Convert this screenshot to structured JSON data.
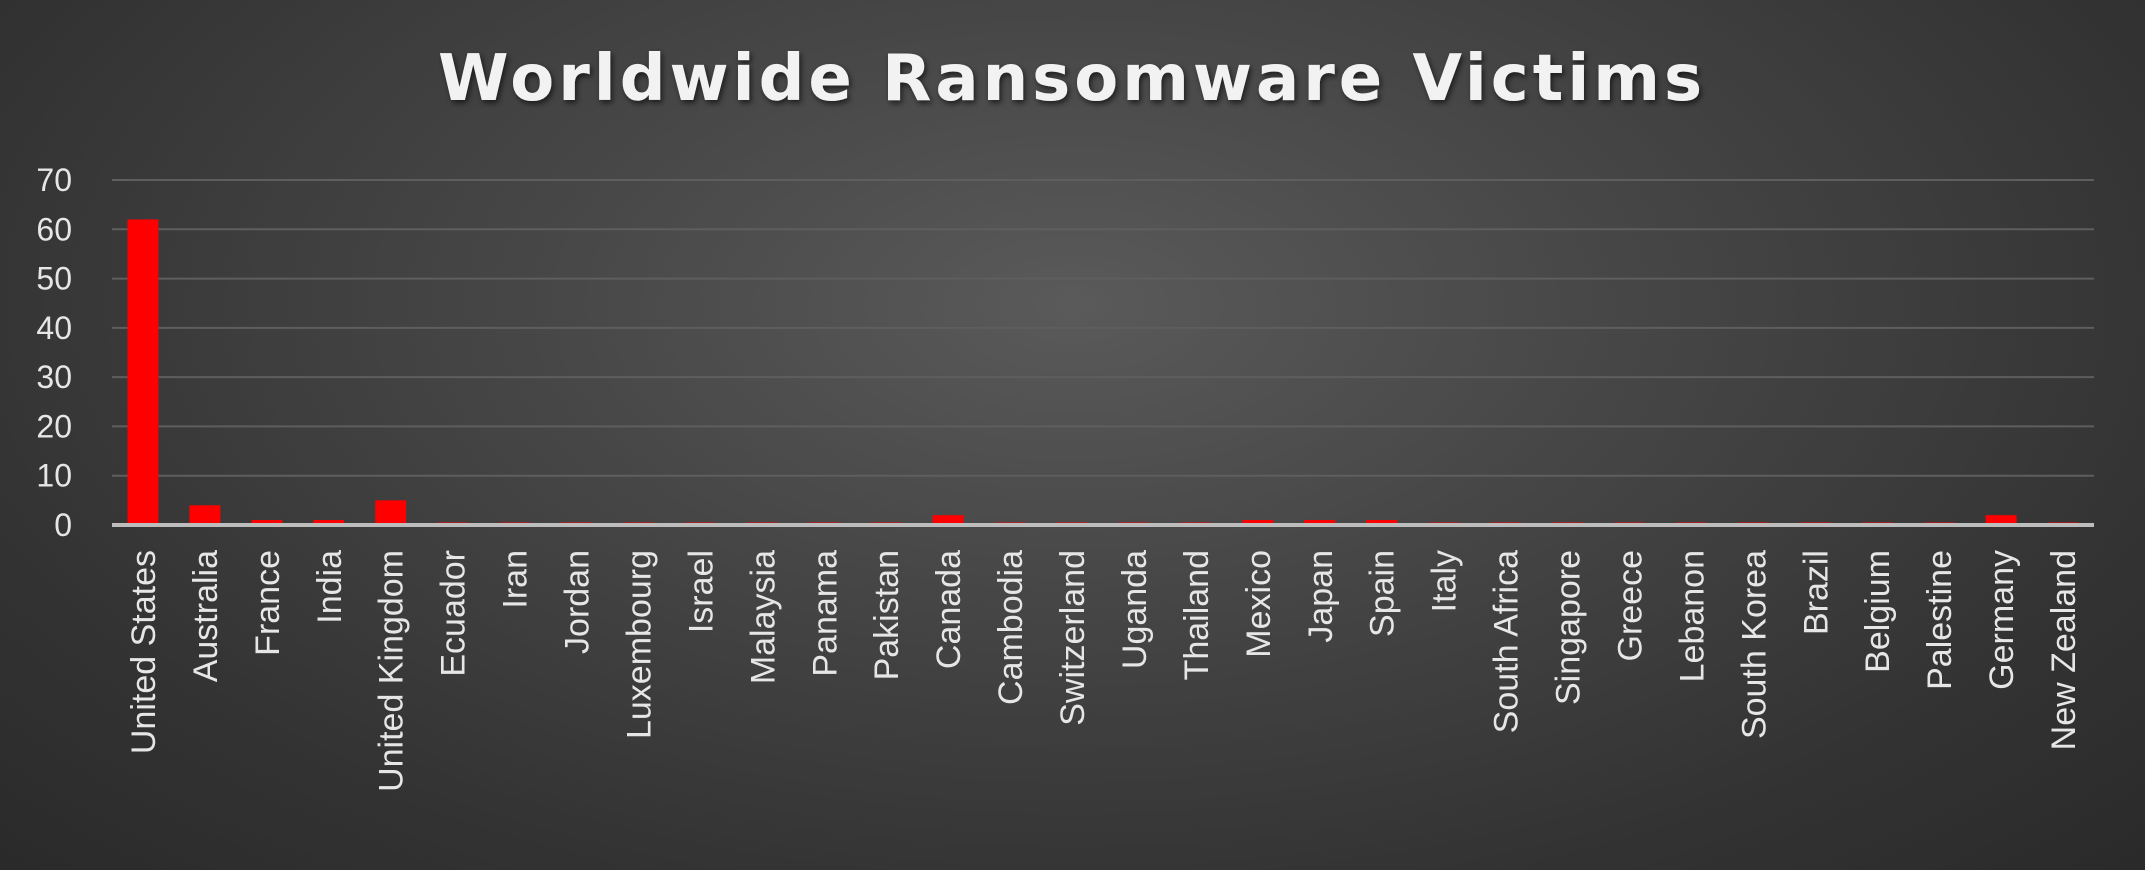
{
  "chart_data": {
    "type": "bar",
    "title": "Worldwide Ransomware Victims",
    "xlabel": "",
    "ylabel": "",
    "ylim": [
      0,
      70
    ],
    "yticks": [
      0,
      10,
      20,
      30,
      40,
      50,
      60,
      70
    ],
    "grid": true,
    "legend": "none",
    "categories": [
      "United States",
      "Australia",
      "France",
      "India",
      "United Kingdom",
      "Ecuador",
      "Iran",
      "Jordan",
      "Luxembourg",
      "Israel",
      "Malaysia",
      "Panama",
      "Pakistan",
      "Canada",
      "Cambodia",
      "Switzerland",
      "Uganda",
      "Thailand",
      "Mexico",
      "Japan",
      "Spain",
      "Italy",
      "South Africa",
      "Singapore",
      "Greece",
      "Lebanon",
      "South Korea",
      "Brazil",
      "Belgium",
      "Palestine",
      "Germany",
      "New Zealand"
    ],
    "values": [
      62,
      4,
      1,
      1,
      5,
      0.5,
      0.5,
      0.5,
      0.5,
      0.5,
      0.5,
      0.5,
      0.5,
      2,
      0.5,
      0.5,
      0.5,
      0.5,
      1,
      1,
      1,
      0.5,
      0.5,
      0.5,
      0.5,
      0.5,
      0.5,
      0.5,
      0.5,
      0.5,
      2,
      0.5
    ],
    "colors": {
      "bar": "#ff0000",
      "gridline": "#5e5e5e",
      "axis": "#bdbdbd",
      "text": "#e6e6e6"
    }
  }
}
